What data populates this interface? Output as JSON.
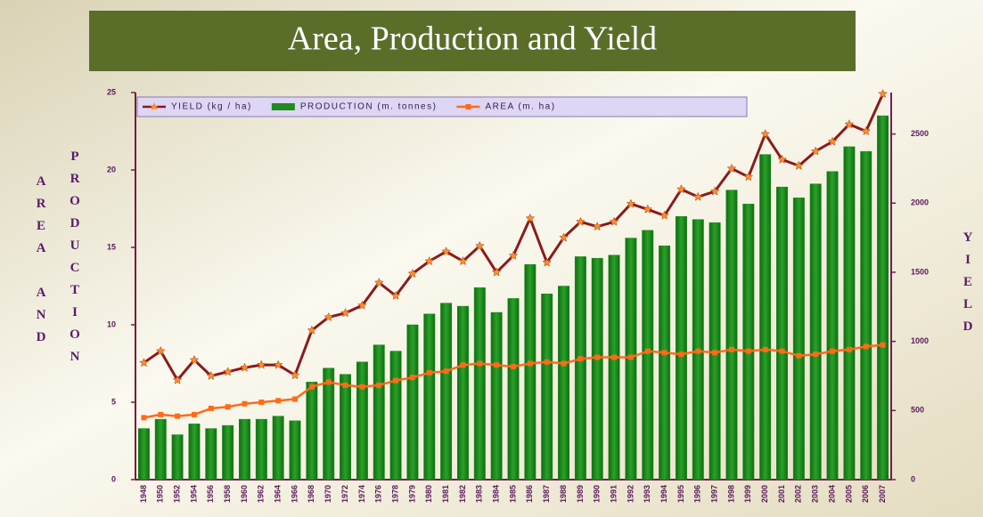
{
  "chart_data": {
    "type": "bar",
    "title": "Area, Production and Yield",
    "ylabel": [
      "AREA AND",
      "PRODUCTION"
    ],
    "y2label": "YIELD",
    "categories": [
      "1948",
      "1950",
      "1952",
      "1954",
      "1956",
      "1958",
      "1960",
      "1962",
      "1964",
      "1966",
      "1968",
      "1970",
      "1972",
      "1974",
      "1976",
      "1978",
      "1979",
      "1980",
      "1981",
      "1982",
      "1983",
      "1984",
      "1985",
      "1986",
      "1987",
      "1988",
      "1989",
      "1990",
      "1991",
      "1992",
      "1993",
      "1994",
      "1995",
      "1996",
      "1997",
      "1998",
      "1999",
      "2000",
      "2001",
      "2002",
      "2003",
      "2004",
      "2005",
      "2006",
      "2007"
    ],
    "series": [
      {
        "name": "YIELD (kg / ha)",
        "type": "line",
        "axis": "y2",
        "color": "#8b1a1a",
        "marker_color": "#ff8c2a",
        "values": [
          845,
          930,
          720,
          865,
          750,
          780,
          810,
          830,
          830,
          755,
          1080,
          1175,
          1205,
          1260,
          1425,
          1330,
          1490,
          1580,
          1650,
          1580,
          1690,
          1500,
          1620,
          1890,
          1570,
          1750,
          1865,
          1830,
          1865,
          1995,
          1955,
          1910,
          2100,
          2045,
          2085,
          2250,
          2190,
          2500,
          2315,
          2270,
          2375,
          2445,
          2570,
          2520,
          2790
        ]
      },
      {
        "name": "PRODUCTION (m. tonnes)",
        "type": "bar",
        "color": "#1e8c1e",
        "values": [
          3.3,
          3.9,
          2.9,
          3.6,
          3.3,
          3.5,
          3.9,
          3.9,
          4.1,
          3.8,
          6.3,
          7.2,
          6.8,
          7.6,
          8.7,
          8.3,
          10.0,
          10.7,
          11.4,
          11.2,
          12.4,
          10.8,
          11.7,
          13.9,
          12.0,
          12.5,
          14.4,
          14.3,
          14.5,
          15.6,
          16.1,
          15.1,
          17.0,
          16.8,
          16.6,
          18.7,
          17.8,
          21.0,
          18.9,
          18.2,
          19.1,
          19.9,
          21.5,
          21.2,
          23.5
        ]
      },
      {
        "name": "AREA (m. ha)",
        "type": "line",
        "color": "#ff6a1a",
        "values": [
          4.0,
          4.2,
          4.1,
          4.2,
          4.6,
          4.7,
          4.9,
          5.0,
          5.1,
          5.2,
          6.0,
          6.3,
          6.1,
          6.0,
          6.1,
          6.4,
          6.6,
          6.9,
          7.0,
          7.4,
          7.5,
          7.4,
          7.3,
          7.5,
          7.6,
          7.5,
          7.8,
          7.9,
          7.9,
          7.9,
          8.3,
          8.2,
          8.1,
          8.3,
          8.2,
          8.4,
          8.3,
          8.4,
          8.3,
          8.0,
          8.1,
          8.3,
          8.4,
          8.6,
          8.7
        ]
      }
    ],
    "ylim": [
      0,
      25
    ],
    "yticks": [
      0,
      5,
      10,
      15,
      20,
      25
    ],
    "y2lim": [
      0,
      2800
    ],
    "y2ticks": [
      0,
      500,
      1000,
      1500,
      2000,
      2500
    ],
    "legend": "top-left"
  }
}
